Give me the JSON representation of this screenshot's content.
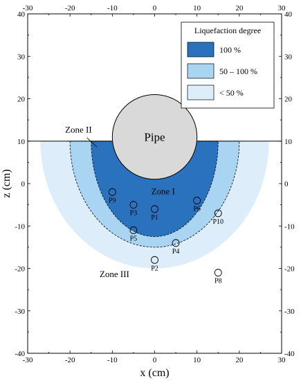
{
  "chart_data": {
    "type": "scatter",
    "xlabel": "x (cm)",
    "ylabel": "z (cm)",
    "xlim": [
      -30,
      30
    ],
    "ylim": [
      -40,
      40
    ],
    "xticks": [
      -30,
      -20,
      -10,
      0,
      10,
      20,
      30
    ],
    "yticks": [
      -40,
      -30,
      -20,
      -10,
      0,
      10,
      20,
      30,
      40
    ],
    "grid": false,
    "ground_level_z": 10,
    "pipe": {
      "label": "Pipe",
      "center": [
        0,
        11
      ],
      "radius": 10,
      "color": "#d9d9d9"
    },
    "zones": [
      {
        "label": "Zone III",
        "half_width": 27,
        "depth": 30,
        "color": "#ddeefa",
        "dashed": false,
        "label_at": [
          -9.5,
          -22
        ]
      },
      {
        "label": "Zone II",
        "half_width": 20,
        "depth": 25,
        "color": "#a9d5f3",
        "dashed": true,
        "label_at": [
          -18,
          12
        ]
      },
      {
        "label": "Zone I",
        "half_width": 15,
        "depth": 22.5,
        "color": "#2a72bd",
        "dashed": true,
        "label_at": [
          2,
          -2.5
        ]
      }
    ],
    "points": [
      {
        "label": "P1",
        "x": 0,
        "z": -6
      },
      {
        "label": "P2",
        "x": 0,
        "z": -18
      },
      {
        "label": "P3",
        "x": -5,
        "z": -5
      },
      {
        "label": "P4",
        "x": 5,
        "z": -14
      },
      {
        "label": "P5",
        "x": -5,
        "z": -11
      },
      {
        "label": "P6",
        "x": 10,
        "z": -4
      },
      {
        "label": "P8",
        "x": 15,
        "z": -21
      },
      {
        "label": "P9",
        "x": -10,
        "z": -2
      },
      {
        "label": "P10",
        "x": 15,
        "z": -7
      }
    ],
    "legend": {
      "title": "Liquefaction degree",
      "placement": "top-right",
      "entries": [
        {
          "label": "100 %",
          "color": "#2a72bd"
        },
        {
          "label": "50 – 100 %",
          "color": "#a9d5f3"
        },
        {
          "label": "< 50 %",
          "color": "#ddeefa"
        }
      ]
    }
  }
}
